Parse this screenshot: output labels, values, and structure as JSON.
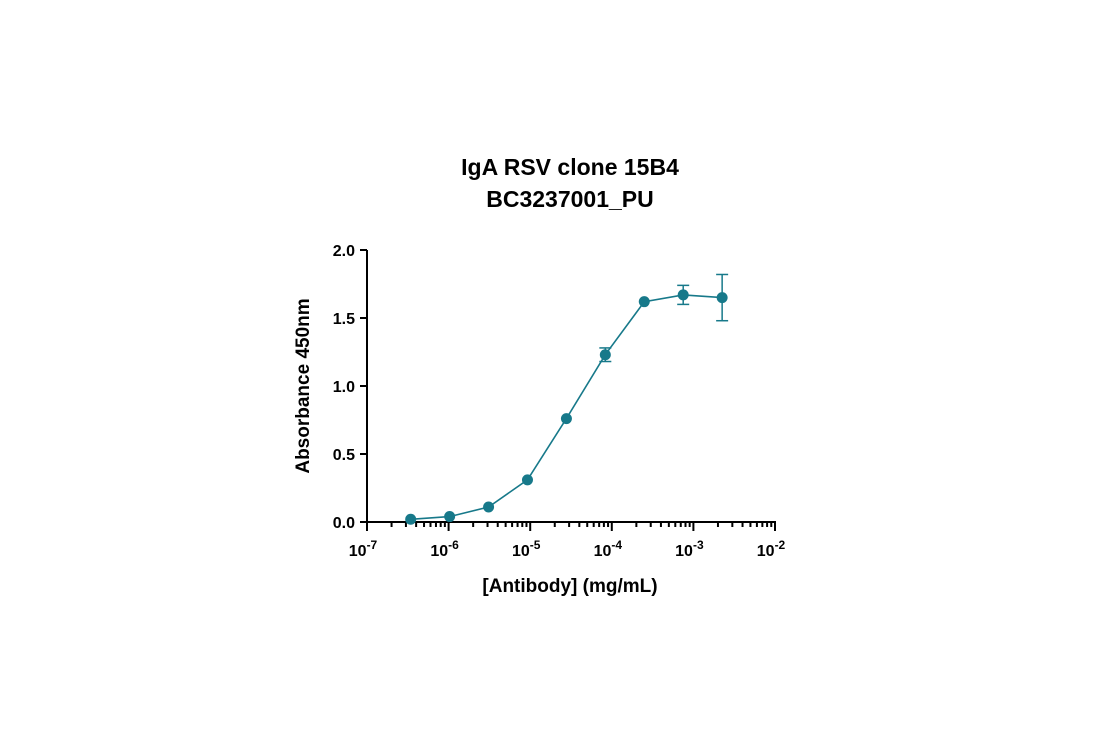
{
  "chart_data": {
    "type": "scatter",
    "title": "IgA RSV clone 15B4",
    "subtitle": "BC3237001_PU",
    "xlabel": "[Antibody] (mg/mL)",
    "ylabel": "Absorbance 450nm",
    "xscale": "log",
    "xlim": [
      1e-07,
      0.01
    ],
    "ylim": [
      0,
      2.0
    ],
    "x_ticks": [
      {
        "value": 1e-07,
        "base": "10",
        "exp": "-7"
      },
      {
        "value": 1e-06,
        "base": "10",
        "exp": "-6"
      },
      {
        "value": 1e-05,
        "base": "10",
        "exp": "-5"
      },
      {
        "value": 0.0001,
        "base": "10",
        "exp": "-4"
      },
      {
        "value": 0.001,
        "base": "10",
        "exp": "-3"
      },
      {
        "value": 0.01,
        "base": "10",
        "exp": "-2"
      }
    ],
    "y_ticks": [
      {
        "value": 0.0,
        "label": "0.0"
      },
      {
        "value": 0.5,
        "label": "0.5"
      },
      {
        "value": 1.0,
        "label": "1.0"
      },
      {
        "value": 1.5,
        "label": "1.5"
      },
      {
        "value": 2.0,
        "label": "2.0"
      }
    ],
    "grid": false,
    "color": "#17798a",
    "series": [
      {
        "x": [
          3.43e-07,
          1.03e-06,
          3.09e-06,
          9.26e-06,
          2.78e-05,
          8.33e-05,
          0.00025,
          0.00075,
          0.00225
        ],
        "y": [
          0.02,
          0.04,
          0.11,
          0.31,
          0.76,
          1.23,
          1.62,
          1.67,
          1.65
        ],
        "error": [
          0,
          0,
          0,
          0,
          0,
          0.05,
          0,
          0.07,
          0.17
        ]
      }
    ]
  }
}
